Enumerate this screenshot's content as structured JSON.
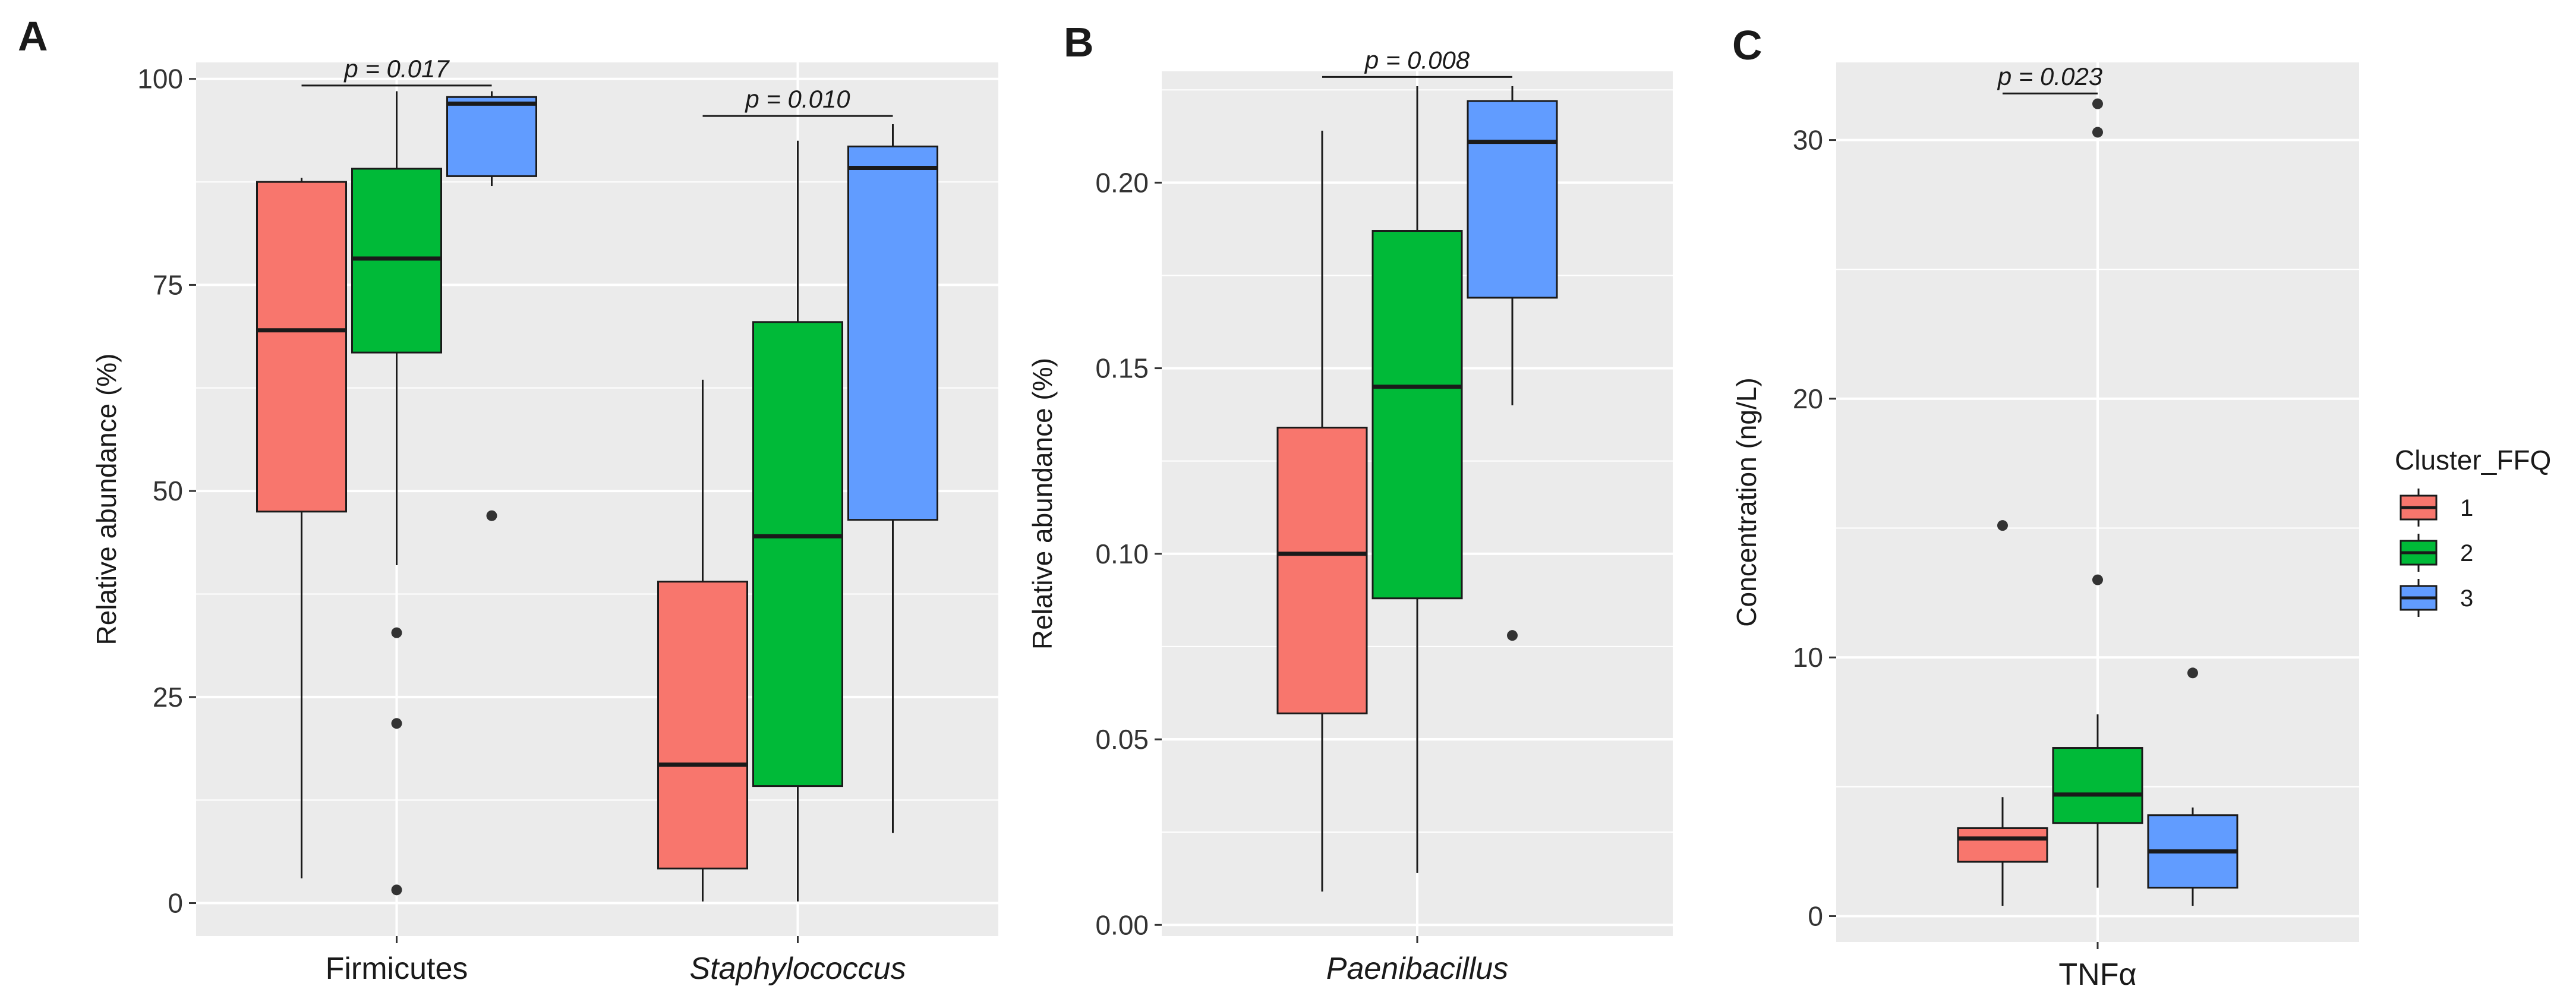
{
  "chart_data": [
    {
      "type": "box",
      "panel": "A",
      "ylabel": "Relative abundance (%)",
      "ylim": [
        -4,
        102
      ],
      "yticks": [
        0,
        25,
        50,
        75,
        100
      ],
      "ytick_labels": [
        "0",
        "25",
        "50",
        "75",
        "100"
      ],
      "categories": [
        "Firmicutes",
        "Staphylococcus"
      ],
      "category_italic": [
        false,
        true
      ],
      "clusters": [
        "1",
        "2",
        "3"
      ],
      "boxes": [
        {
          "category": 0,
          "cluster": 0,
          "q1": 47.5,
          "median": 69.5,
          "q3": 87.5,
          "whisker_low": 3,
          "whisker_high": 88,
          "outliers": []
        },
        {
          "category": 0,
          "cluster": 1,
          "q1": 66.8,
          "median": 78.2,
          "q3": 89.1,
          "whisker_low": 41,
          "whisker_high": 98.5,
          "outliers": [
            32.8,
            21.8,
            1.6
          ]
        },
        {
          "category": 0,
          "cluster": 2,
          "q1": 88.2,
          "median": 97,
          "q3": 97.8,
          "whisker_low": 87,
          "whisker_high": 98.5,
          "outliers": [
            47
          ]
        },
        {
          "category": 1,
          "cluster": 0,
          "q1": 4.2,
          "median": 16.8,
          "q3": 39,
          "whisker_low": 0.2,
          "whisker_high": 63.5,
          "outliers": []
        },
        {
          "category": 1,
          "cluster": 1,
          "q1": 14.2,
          "median": 44.5,
          "q3": 70.5,
          "whisker_low": 0.2,
          "whisker_high": 92.5,
          "outliers": []
        },
        {
          "category": 1,
          "cluster": 2,
          "q1": 46.5,
          "median": 89.2,
          "q3": 91.8,
          "whisker_low": 8.5,
          "whisker_high": 94.5,
          "outliers": []
        }
      ],
      "annotations": [
        {
          "text": "p = 0.017",
          "category": 0,
          "from_cluster": 0,
          "to_cluster": 2,
          "y": 99.2
        },
        {
          "text": "p = 0.010",
          "category": 1,
          "from_cluster": 0,
          "to_cluster": 2,
          "y": 95.5
        }
      ]
    },
    {
      "type": "box",
      "panel": "B",
      "ylabel": "Relative abundance (%)",
      "ylim": [
        -0.003,
        0.23
      ],
      "yticks": [
        0,
        0.05,
        0.1,
        0.15,
        0.2
      ],
      "ytick_labels": [
        "0.00",
        "0.05",
        "0.10",
        "0.15",
        "0.20"
      ],
      "categories": [
        "Paenibacillus"
      ],
      "category_italic": [
        true
      ],
      "clusters": [
        "1",
        "2",
        "3"
      ],
      "boxes": [
        {
          "category": 0,
          "cluster": 0,
          "q1": 0.057,
          "median": 0.1,
          "q3": 0.134,
          "whisker_low": 0.009,
          "whisker_high": 0.214,
          "outliers": []
        },
        {
          "category": 0,
          "cluster": 1,
          "q1": 0.088,
          "median": 0.145,
          "q3": 0.187,
          "whisker_low": 0.014,
          "whisker_high": 0.226,
          "outliers": []
        },
        {
          "category": 0,
          "cluster": 2,
          "q1": 0.169,
          "median": 0.211,
          "q3": 0.222,
          "whisker_low": 0.14,
          "whisker_high": 0.226,
          "outliers": [
            0.078
          ]
        }
      ],
      "annotations": [
        {
          "text": "p = 0.008",
          "category": 0,
          "from_cluster": 0,
          "to_cluster": 2,
          "y": 0.2285
        }
      ]
    },
    {
      "type": "box",
      "panel": "C",
      "ylabel": "Concentration (ng/L)",
      "ylim": [
        -1,
        33
      ],
      "yticks": [
        0,
        10,
        20,
        30
      ],
      "ytick_labels": [
        "0",
        "10",
        "20",
        "30"
      ],
      "categories": [
        "TNFα"
      ],
      "category_italic": [
        false
      ],
      "clusters": [
        "1",
        "2",
        "3"
      ],
      "boxes": [
        {
          "category": 0,
          "cluster": 0,
          "q1": 2.1,
          "median": 3,
          "q3": 3.4,
          "whisker_low": 0.4,
          "whisker_high": 4.6,
          "outliers": [
            15.1
          ]
        },
        {
          "category": 0,
          "cluster": 1,
          "q1": 3.6,
          "median": 4.7,
          "q3": 6.5,
          "whisker_low": 1.1,
          "whisker_high": 7.8,
          "outliers": [
            13,
            30.3,
            31.4
          ]
        },
        {
          "category": 0,
          "cluster": 2,
          "q1": 1.1,
          "median": 2.5,
          "q3": 3.9,
          "whisker_low": 0.4,
          "whisker_high": 4.2,
          "outliers": [
            9.4
          ]
        }
      ],
      "annotations": [
        {
          "text": "p = 0.023",
          "category": 0,
          "from_cluster": 0,
          "to_cluster": 1,
          "y": 31.8
        }
      ]
    }
  ],
  "legend": {
    "title": "Cluster_FFQ",
    "placement": "right",
    "items": [
      {
        "label": "1",
        "color": "#F8766D"
      },
      {
        "label": "2",
        "color": "#00BA38"
      },
      {
        "label": "3",
        "color": "#619CFF"
      }
    ]
  },
  "style": {
    "panel_bg": "#EBEBEB",
    "grid_color": "#FFFFFF",
    "box_edge": "#1a1a1a",
    "cluster_colors": [
      "#F8766D",
      "#00BA38",
      "#619CFF"
    ]
  }
}
